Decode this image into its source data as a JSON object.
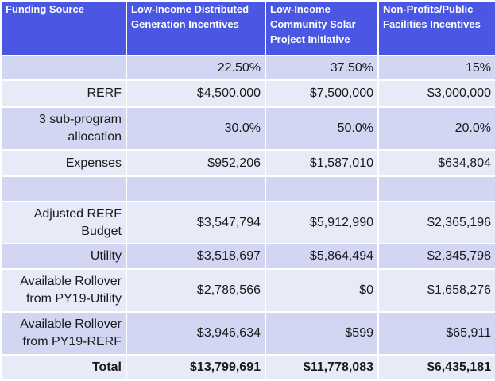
{
  "table": {
    "headers": [
      "Funding Source",
      "Low-Income Distributed Generation Incentives",
      "Low-Income Community Solar Project Initiative",
      "Non-Profits/Public Facilities Incentives"
    ],
    "rows": [
      {
        "label": "",
        "values": [
          "22.50%",
          "37.50%",
          "15%"
        ]
      },
      {
        "label": "RERF",
        "values": [
          "$4,500,000",
          "$7,500,000",
          "$3,000,000"
        ]
      },
      {
        "label": "3 sub-program allocation",
        "values": [
          "30.0%",
          "50.0%",
          "20.0%"
        ]
      },
      {
        "label": "Expenses",
        "values": [
          "$952,206",
          "$1,587,010",
          "$634,804"
        ]
      },
      {
        "label": "",
        "values": [
          "",
          "",
          ""
        ]
      },
      {
        "label": "Adjusted RERF Budget",
        "values": [
          "$3,547,794",
          "$5,912,990",
          "$2,365,196"
        ]
      },
      {
        "label": "Utility",
        "values": [
          "$3,518,697",
          "$5,864,494",
          "$2,345,798"
        ]
      },
      {
        "label": "Available Rollover from PY19-Utility",
        "values": [
          "$2,786,566",
          "$0",
          "$1,658,276"
        ]
      },
      {
        "label": "Available Rollover from PY19-RERF",
        "values": [
          "$3,946,634",
          "$599",
          "$65,911"
        ]
      },
      {
        "label": "Total",
        "values": [
          "$13,799,691",
          "$11,778,083",
          "$6,435,181"
        ]
      }
    ]
  },
  "colors": {
    "header_bg": "#4a57e3",
    "row_dark": "#d3d6f3",
    "row_light": "#e9eaf8"
  }
}
